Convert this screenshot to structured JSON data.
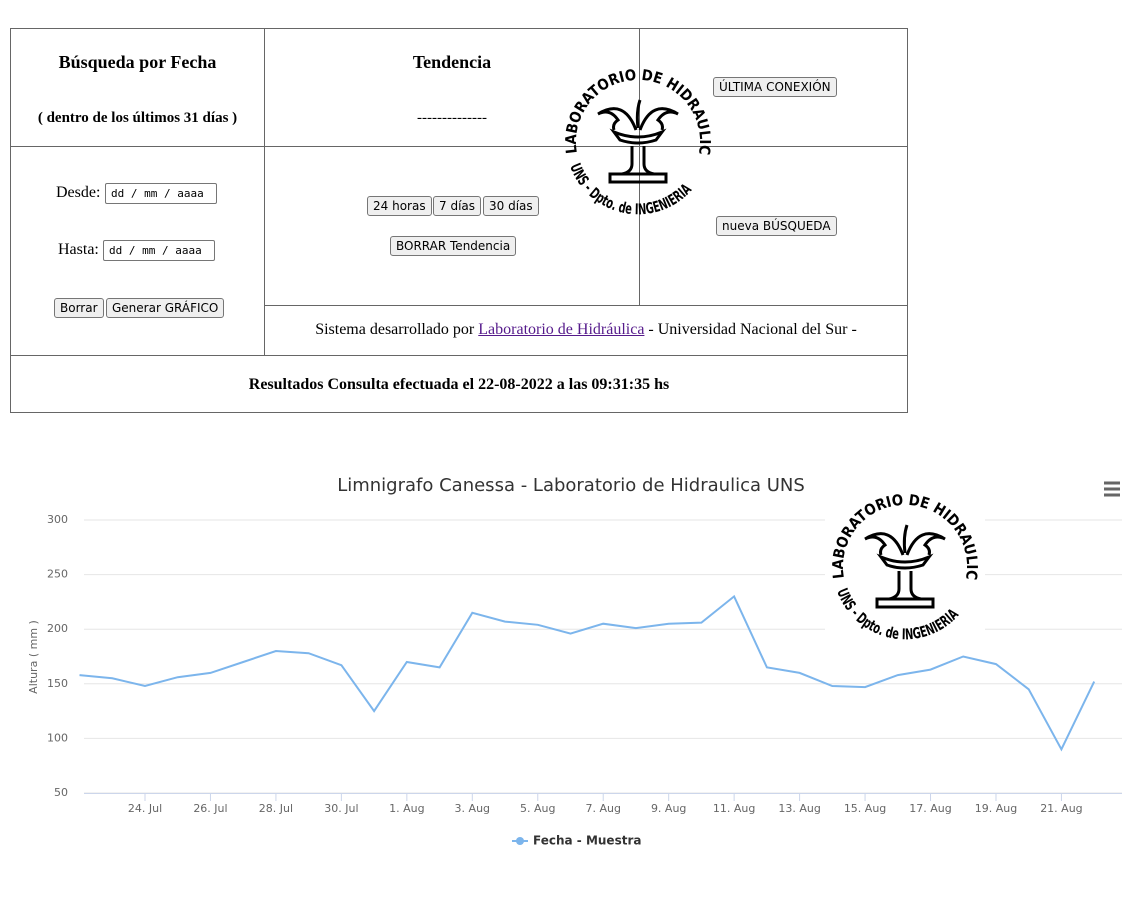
{
  "search": {
    "title": "Búsqueda por Fecha",
    "subtitle": "( dentro de los últimos 31 días )",
    "from_label": "Desde:",
    "to_label": "Hasta:",
    "date_placeholder": "dd / mm / aaaa",
    "clear_button": "Borrar",
    "generate_button": "Generar GRÁFICO"
  },
  "trend": {
    "title": "Tendencia",
    "value": "--------------",
    "buttons": [
      "24 horas",
      "7 días",
      "30 días"
    ],
    "clear_button": "BORRAR Tendencia"
  },
  "side": {
    "last_connection": "ÚLTIMA CONEXIÓN",
    "new_search": "nueva BÚSQUEDA"
  },
  "footer": {
    "prefix": "Sistema desarrollado por",
    "link": "Laboratorio de Hidráulica",
    "suffix": "- Universidad Nacional del Sur -"
  },
  "results": "Resultados Consulta efectuada el 22-08-2022 a las 09:31:35 hs",
  "logo": {
    "top": "LABORATORIO DE HIDRAULICA",
    "bottom": "UNS - Dpto. de INGENIERIA"
  },
  "chart_data": {
    "type": "line",
    "title": "Limnigrafo Canessa - Laboratorio de Hidraulica UNS",
    "y_label": "Altura ( mm )",
    "categories": [
      null,
      null,
      "24. Jul",
      null,
      "26. Jul",
      null,
      "28. Jul",
      null,
      "30. Jul",
      null,
      "1. Aug",
      null,
      "3. Aug",
      null,
      "5. Aug",
      null,
      "7. Aug",
      null,
      "9. Aug",
      null,
      "11. Aug",
      null,
      "13. Aug",
      null,
      "15. Aug",
      null,
      "17. Aug",
      null,
      "19. Aug",
      null,
      "21. Aug",
      null
    ],
    "series": [
      {
        "name": "Fecha - Muestra",
        "color": "#7cb5ec",
        "values": [
          158,
          155,
          148,
          156,
          160,
          170,
          180,
          178,
          167,
          125,
          170,
          165,
          215,
          207,
          204,
          196,
          205,
          201,
          205,
          206,
          230,
          165,
          160,
          148,
          147,
          158,
          163,
          175,
          168,
          145,
          90,
          152
        ]
      }
    ],
    "ylim": [
      50,
      300
    ],
    "yticks": [
      50,
      100,
      150,
      200,
      250,
      300
    ],
    "grid": true,
    "legend": "bottom"
  }
}
